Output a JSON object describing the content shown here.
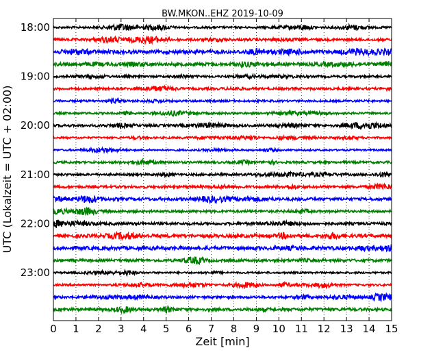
{
  "chart_data": {
    "type": "line",
    "title": "BW.MKON..EHZ 2019-10-09",
    "xlabel": "Zeit  [min]",
    "ylabel": "UTC (Lokalzeit = UTC + 02:00)",
    "xlim": [
      0,
      15
    ],
    "x_ticks": [
      0,
      1,
      2,
      3,
      4,
      5,
      6,
      7,
      8,
      9,
      10,
      11,
      12,
      13,
      14,
      15
    ],
    "y_tick_labels": [
      "18:00",
      "19:00",
      "20:00",
      "21:00",
      "22:00",
      "23:00"
    ],
    "grid": "vertical-dotted",
    "trace_colors": [
      "#000000",
      "#ff0000",
      "#0000ff",
      "#008000"
    ],
    "traces": [
      {
        "start": "18:00",
        "amplitude": 0.9
      },
      {
        "start": "18:15",
        "amplitude": 1.1
      },
      {
        "start": "18:30",
        "amplitude": 1.6
      },
      {
        "start": "18:45",
        "amplitude": 1.5
      },
      {
        "start": "19:00",
        "amplitude": 1.0
      },
      {
        "start": "19:15",
        "amplitude": 1.0
      },
      {
        "start": "19:30",
        "amplitude": 0.9
      },
      {
        "start": "19:45",
        "amplitude": 0.9
      },
      {
        "start": "20:00",
        "amplitude": 1.1
      },
      {
        "start": "20:15",
        "amplitude": 0.8
      },
      {
        "start": "20:30",
        "amplitude": 0.8
      },
      {
        "start": "20:45",
        "amplitude": 1.0
      },
      {
        "start": "21:00",
        "amplitude": 1.0
      },
      {
        "start": "21:15",
        "amplitude": 1.1
      },
      {
        "start": "21:30",
        "amplitude": 1.3
      },
      {
        "start": "21:45",
        "amplitude": 1.1
      },
      {
        "start": "22:00",
        "amplitude": 1.2
      },
      {
        "start": "22:15",
        "amplitude": 1.5
      },
      {
        "start": "22:30",
        "amplitude": 1.6
      },
      {
        "start": "22:45",
        "amplitude": 1.2
      },
      {
        "start": "23:00",
        "amplitude": 0.8
      },
      {
        "start": "23:15",
        "amplitude": 0.9
      },
      {
        "start": "23:30",
        "amplitude": 1.1
      },
      {
        "start": "23:45",
        "amplitude": 1.3
      }
    ]
  }
}
